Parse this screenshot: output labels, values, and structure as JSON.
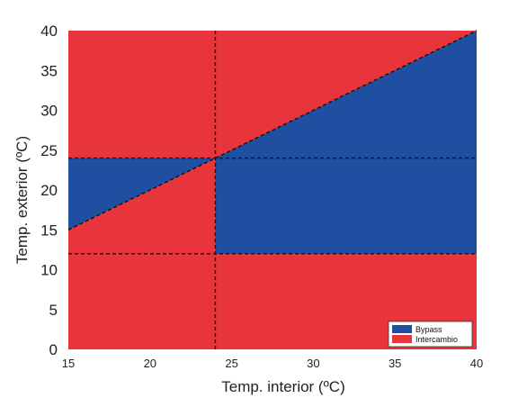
{
  "chart_data": {
    "type": "area",
    "xlabel": "Temp. interior (ºC)",
    "ylabel": "Temp. exterior (ºC)",
    "xlim": [
      15,
      40
    ],
    "ylim": [
      0,
      40
    ],
    "x_ticks": [
      15,
      20,
      25,
      30,
      35,
      40
    ],
    "y_ticks": [
      0,
      5,
      10,
      15,
      20,
      25,
      30,
      35,
      40
    ],
    "grid": false,
    "colors": {
      "bypass": "#1f4fa0",
      "intercambio": "#e8353b",
      "reference_line": "#111111"
    },
    "regions": [
      {
        "name": "Bypass",
        "polygon": [
          [
            15,
            15
          ],
          [
            24,
            24
          ],
          [
            40,
            40
          ],
          [
            40,
            12
          ],
          [
            24,
            12
          ],
          [
            24,
            24
          ],
          [
            15,
            24
          ]
        ]
      },
      {
        "name": "Intercambio",
        "polygon": "all remaining area"
      }
    ],
    "reference_lines": [
      {
        "kind": "diagonal",
        "from": [
          15,
          15
        ],
        "to": [
          40,
          40
        ]
      },
      {
        "kind": "vertical",
        "x": 24
      },
      {
        "kind": "horizontal",
        "y": 24
      },
      {
        "kind": "horizontal",
        "y": 12
      }
    ],
    "legend": {
      "position": "bottom-right",
      "entries": [
        {
          "label": "Bypass",
          "color": "#1f4fa0"
        },
        {
          "label": "Intercambio",
          "color": "#e8353b"
        }
      ]
    }
  }
}
